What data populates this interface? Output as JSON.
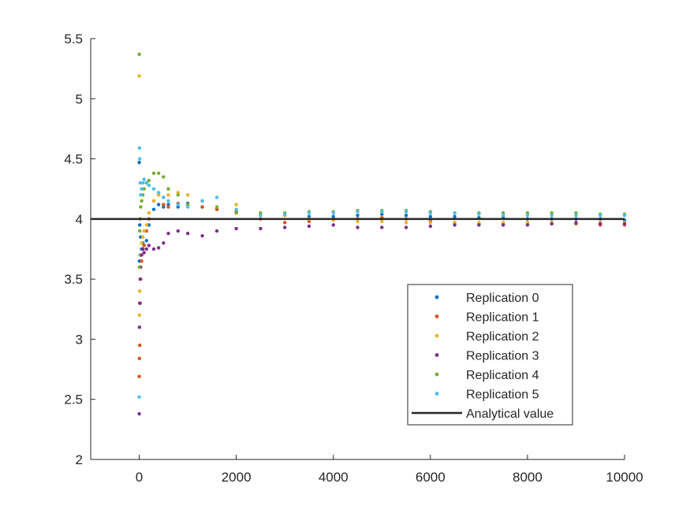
{
  "chart_data": {
    "type": "scatter",
    "title": "",
    "xlabel": "",
    "ylabel": "",
    "xlim": [
      -1000,
      10000
    ],
    "ylim": [
      2,
      5.5
    ],
    "x_ticks": [
      0,
      2000,
      4000,
      6000,
      8000,
      10000
    ],
    "x_tick_labels": [
      "0",
      "2000",
      "4000",
      "6000",
      "8000",
      "10000"
    ],
    "y_ticks": [
      2,
      2.5,
      3,
      3.5,
      4,
      4.5,
      5,
      5.5
    ],
    "y_tick_labels": [
      "2",
      "2.5",
      "3",
      "3.5",
      "4",
      "4.5",
      "5",
      "5.5"
    ],
    "grid": false,
    "legend_position": "lower-right",
    "series": [
      {
        "name": "Replication 0",
        "color": "#0072BD",
        "x": [
          1,
          5,
          10,
          20,
          30,
          50,
          75,
          100,
          150,
          200,
          300,
          400,
          500,
          600,
          800,
          1000,
          1300,
          1600,
          2000,
          2500,
          3000,
          3500,
          4000,
          4500,
          5000,
          5500,
          6000,
          6500,
          7000,
          7500,
          8000,
          8500,
          9000,
          9500,
          10000
        ],
        "y": [
          4.47,
          3.65,
          3.95,
          3.7,
          3.85,
          3.75,
          3.8,
          3.78,
          3.82,
          3.95,
          4.08,
          4.12,
          4.1,
          4.12,
          4.1,
          4.13,
          4.1,
          4.08,
          4.06,
          4.03,
          4.03,
          4.02,
          4.02,
          4.03,
          4.04,
          4.03,
          4.02,
          4.02,
          4.01,
          4.01,
          4.0,
          4.0,
          4.0,
          4.0,
          3.99
        ]
      },
      {
        "name": "Replication 1",
        "color": "#D95319",
        "x": [
          1,
          5,
          10,
          20,
          30,
          50,
          75,
          100,
          150,
          200,
          300,
          400,
          500,
          600,
          800,
          1000,
          1300,
          1600,
          2000,
          2500,
          3000,
          3500,
          4000,
          4500,
          5000,
          5500,
          6000,
          6500,
          7000,
          7500,
          8000,
          8500,
          9000,
          9500,
          10000
        ],
        "y": [
          2.69,
          2.84,
          2.95,
          3.3,
          3.5,
          3.65,
          3.75,
          3.78,
          3.9,
          4.0,
          4.15,
          4.2,
          4.12,
          4.1,
          4.13,
          4.12,
          4.1,
          4.08,
          4.06,
          4.0,
          3.97,
          3.98,
          4.0,
          4.0,
          4.01,
          4.0,
          3.98,
          3.97,
          3.96,
          3.96,
          3.96,
          3.96,
          3.96,
          3.95,
          3.95
        ]
      },
      {
        "name": "Replication 2",
        "color": "#EDB120",
        "x": [
          1,
          5,
          10,
          20,
          30,
          50,
          75,
          100,
          150,
          200,
          300,
          400,
          500,
          600,
          800,
          1000,
          1300,
          1600,
          2000,
          2500,
          3000,
          3500,
          4000,
          4500,
          5000,
          5500,
          6000,
          6500,
          7000,
          7500,
          8000,
          8500,
          9000,
          9500,
          10000
        ],
        "y": [
          5.19,
          3.2,
          3.4,
          3.6,
          3.7,
          3.8,
          3.85,
          3.9,
          3.95,
          4.05,
          4.15,
          4.2,
          4.18,
          4.2,
          4.22,
          4.2,
          4.15,
          4.18,
          4.12,
          4.05,
          4.03,
          4.0,
          3.99,
          3.98,
          3.98,
          3.97,
          3.97,
          3.97,
          3.97,
          3.97,
          3.97,
          3.97,
          3.97,
          3.97,
          3.97
        ]
      },
      {
        "name": "Replication 3",
        "color": "#7E2F8E",
        "x": [
          1,
          5,
          10,
          20,
          30,
          50,
          75,
          100,
          150,
          200,
          300,
          400,
          500,
          600,
          800,
          1000,
          1300,
          1600,
          2000,
          2500,
          3000,
          3500,
          4000,
          4500,
          5000,
          5500,
          6000,
          6500,
          7000,
          7500,
          8000,
          8500,
          9000,
          9500,
          10000
        ],
        "y": [
          2.38,
          3.1,
          3.3,
          3.5,
          3.6,
          3.7,
          3.75,
          3.72,
          3.75,
          3.78,
          3.75,
          3.76,
          3.8,
          3.88,
          3.9,
          3.88,
          3.86,
          3.9,
          3.92,
          3.92,
          3.93,
          3.94,
          3.95,
          3.93,
          3.93,
          3.93,
          3.94,
          3.95,
          3.95,
          3.95,
          3.95,
          3.96,
          3.97,
          3.96,
          3.96
        ]
      },
      {
        "name": "Replication 4",
        "color": "#77AC30",
        "x": [
          1,
          5,
          10,
          20,
          30,
          50,
          75,
          100,
          150,
          200,
          300,
          400,
          500,
          600,
          800,
          1000,
          1300,
          1600,
          2000,
          2500,
          3000,
          3500,
          4000,
          4500,
          5000,
          5500,
          6000,
          6500,
          7000,
          7500,
          8000,
          8500,
          9000,
          9500,
          10000
        ],
        "y": [
          5.37,
          3.6,
          3.9,
          4.0,
          4.1,
          4.15,
          4.2,
          4.25,
          4.3,
          4.32,
          4.38,
          4.38,
          4.35,
          4.25,
          4.2,
          4.12,
          4.15,
          4.1,
          4.05,
          4.05,
          4.05,
          4.06,
          4.06,
          4.07,
          4.07,
          4.07,
          4.06,
          4.05,
          4.05,
          4.05,
          4.05,
          4.05,
          4.05,
          4.04,
          4.04
        ]
      },
      {
        "name": "Replication 5",
        "color": "#4DBEEE",
        "x": [
          1,
          5,
          10,
          20,
          30,
          50,
          75,
          100,
          150,
          200,
          300,
          400,
          500,
          600,
          800,
          1000,
          1300,
          1600,
          2000,
          2500,
          3000,
          3500,
          4000,
          4500,
          5000,
          5500,
          6000,
          6500,
          7000,
          7500,
          8000,
          8500,
          9000,
          9500,
          10000
        ],
        "y": [
          2.52,
          4.59,
          4.5,
          4.3,
          4.2,
          4.25,
          4.3,
          4.33,
          4.3,
          4.28,
          4.25,
          4.22,
          4.18,
          4.15,
          4.12,
          4.1,
          4.15,
          4.18,
          4.08,
          4.03,
          4.04,
          4.05,
          4.05,
          4.06,
          4.06,
          4.06,
          4.05,
          4.05,
          4.04,
          4.03,
          4.03,
          4.03,
          4.03,
          4.03,
          4.03
        ]
      }
    ],
    "reference_line": {
      "name": "Analytical value",
      "color": "#262626",
      "y": 4
    }
  }
}
